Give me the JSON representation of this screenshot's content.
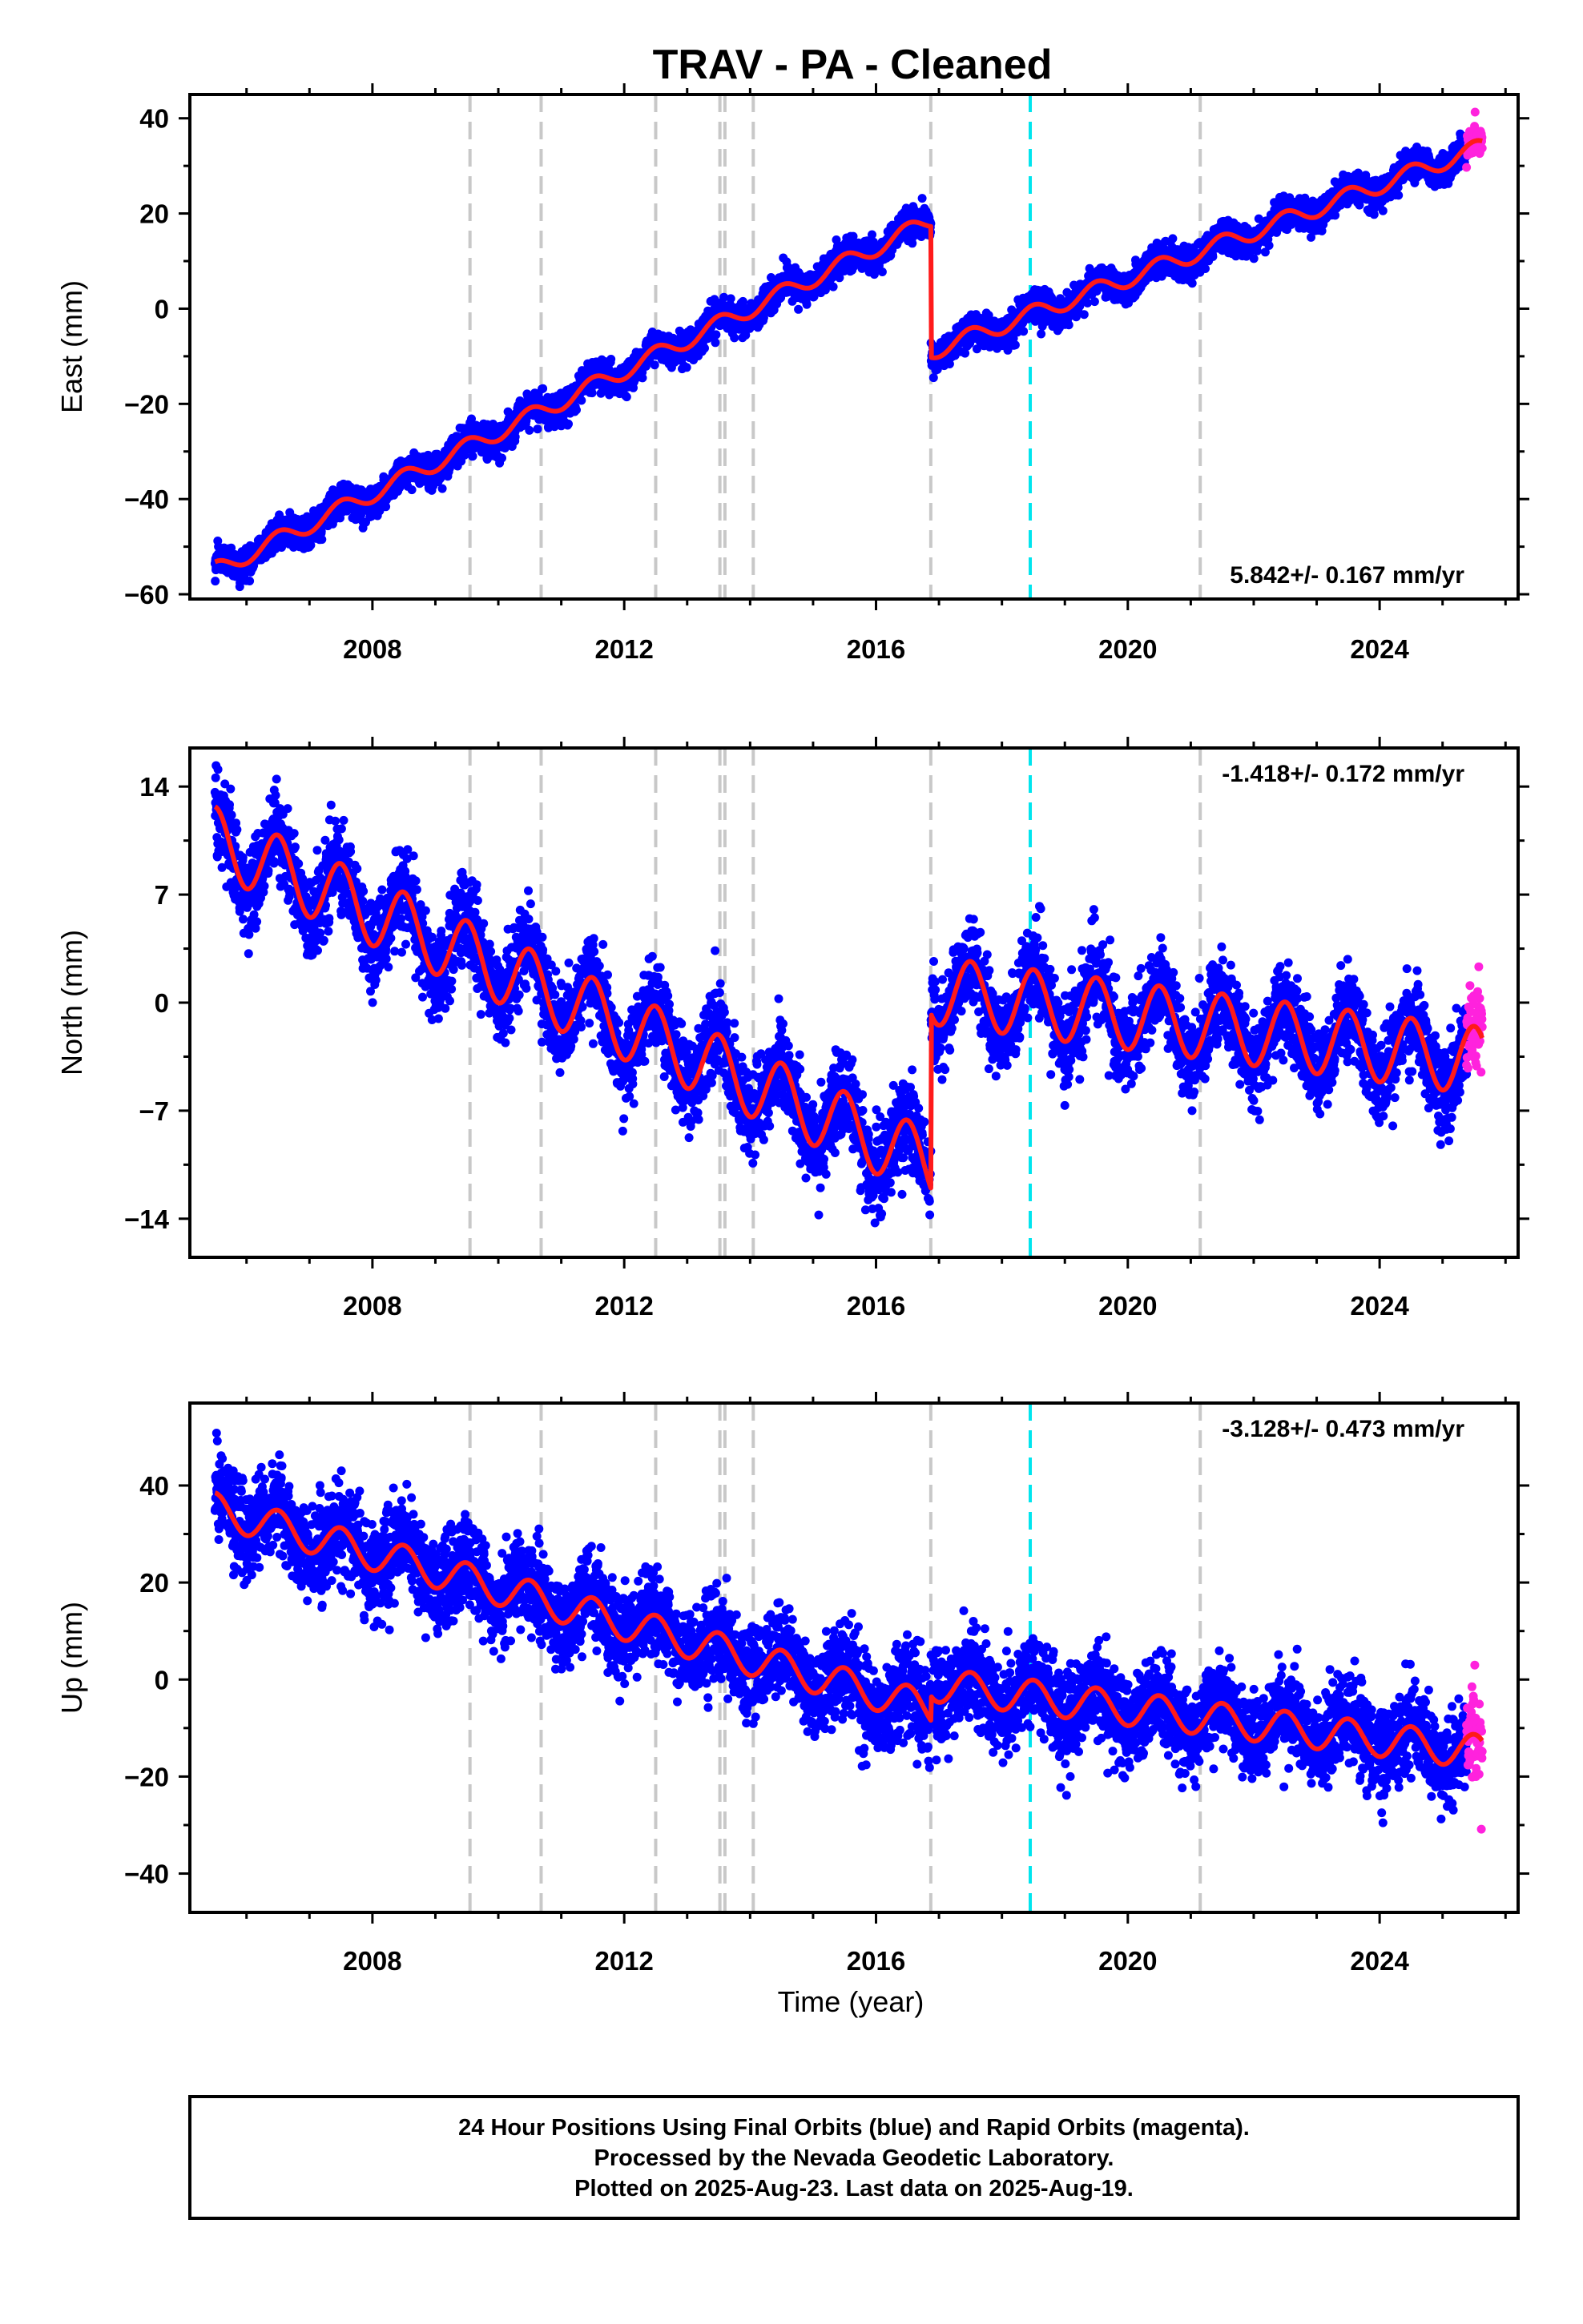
{
  "title": "TRAV  - PA - Cleaned",
  "x_axis_label": "Time (year)",
  "footer": {
    "lines": [
      "24 Hour Positions Using Final Orbits (blue) and Rapid Orbits (magenta).",
      "Processed by the Nevada Geodetic Laboratory.",
      "Plotted on 2025-Aug-23. Last data on 2025-Aug-19."
    ]
  },
  "colors": {
    "final_orbits": "#0000ff",
    "rapid_orbits": "#ff22dd",
    "model_fit": "#ff1a1a",
    "equipment_change": "#c8c8c8",
    "earthquake_event": "#00e5ee",
    "frame": "#000000"
  },
  "chart_data": [
    {
      "type": "scatter",
      "component": "east",
      "ylabel": "East (mm)",
      "xlim": [
        2005.1,
        2026.2
      ],
      "ylim": [
        -61,
        45
      ],
      "yticks": [
        -60,
        -40,
        -20,
        0,
        20,
        40
      ],
      "xticks": [
        2008,
        2012,
        2016,
        2020,
        2024
      ],
      "rate_text": "5.842+/- 0.167 mm/yr",
      "rate_position": "bottom-right",
      "start_year": 2005.5,
      "rapid_start_year": 2025.38,
      "end_year": 2025.63,
      "scatter_sd": 1.6,
      "trend_segments": [
        {
          "x0": 2005.5,
          "x1": 2016.87,
          "y0": -55,
          "y1": 18.5
        },
        {
          "x0": 2016.87,
          "x1": 2025.63,
          "y0": -9,
          "y1": 34
        }
      ],
      "seasonal_amplitude": 1.8,
      "equipment_changes": [
        2009.55,
        2010.68,
        2012.5,
        2013.52,
        2013.6,
        2014.05,
        2016.87,
        2021.15
      ],
      "earthquake_events": [
        2018.45
      ]
    },
    {
      "type": "scatter",
      "component": "north",
      "ylabel": "North (mm)",
      "xlim": [
        2005.1,
        2026.2
      ],
      "ylim": [
        -16.5,
        16.5
      ],
      "yticks": [
        -14,
        -7,
        0,
        7,
        14
      ],
      "xticks": [
        2008,
        2012,
        2016,
        2020,
        2024
      ],
      "rate_text": "-1.418+/- 0.172 mm/yr",
      "rate_position": "top-right",
      "start_year": 2005.5,
      "rapid_start_year": 2025.38,
      "end_year": 2025.63,
      "scatter_sd": 1.4,
      "trend_segments": [
        {
          "x0": 2005.5,
          "x1": 2016.87,
          "y0": 10.5,
          "y1": -10.5
        },
        {
          "x0": 2016.87,
          "x1": 2025.63,
          "y0": 0.8,
          "y1": -3.8
        }
      ],
      "seasonal_amplitude": 2.2,
      "equipment_changes": [
        2009.55,
        2010.68,
        2012.5,
        2013.52,
        2013.6,
        2014.05,
        2016.87,
        2021.15
      ],
      "earthquake_events": [
        2018.45
      ]
    },
    {
      "type": "scatter",
      "component": "up",
      "ylabel": "Up (mm)",
      "xlim": [
        2005.1,
        2026.2
      ],
      "ylim": [
        -48,
        57
      ],
      "yticks": [
        -40,
        -20,
        0,
        20,
        40
      ],
      "xticks": [
        2008,
        2012,
        2016,
        2020,
        2024
      ],
      "rate_text": "-3.128+/- 0.473 mm/yr",
      "rate_position": "top-right",
      "start_year": 2005.5,
      "rapid_start_year": 2025.38,
      "end_year": 2025.63,
      "scatter_sd": 4.5,
      "trend_segments": [
        {
          "x0": 2005.5,
          "x1": 2016.87,
          "y0": 35,
          "y1": -6
        },
        {
          "x0": 2016.87,
          "x1": 2025.63,
          "y0": -1,
          "y1": -15
        }
      ],
      "seasonal_amplitude": 3.5,
      "equipment_changes": [
        2009.55,
        2010.68,
        2012.5,
        2013.52,
        2013.6,
        2014.05,
        2016.87,
        2021.15
      ],
      "earthquake_events": [
        2018.45
      ]
    }
  ]
}
